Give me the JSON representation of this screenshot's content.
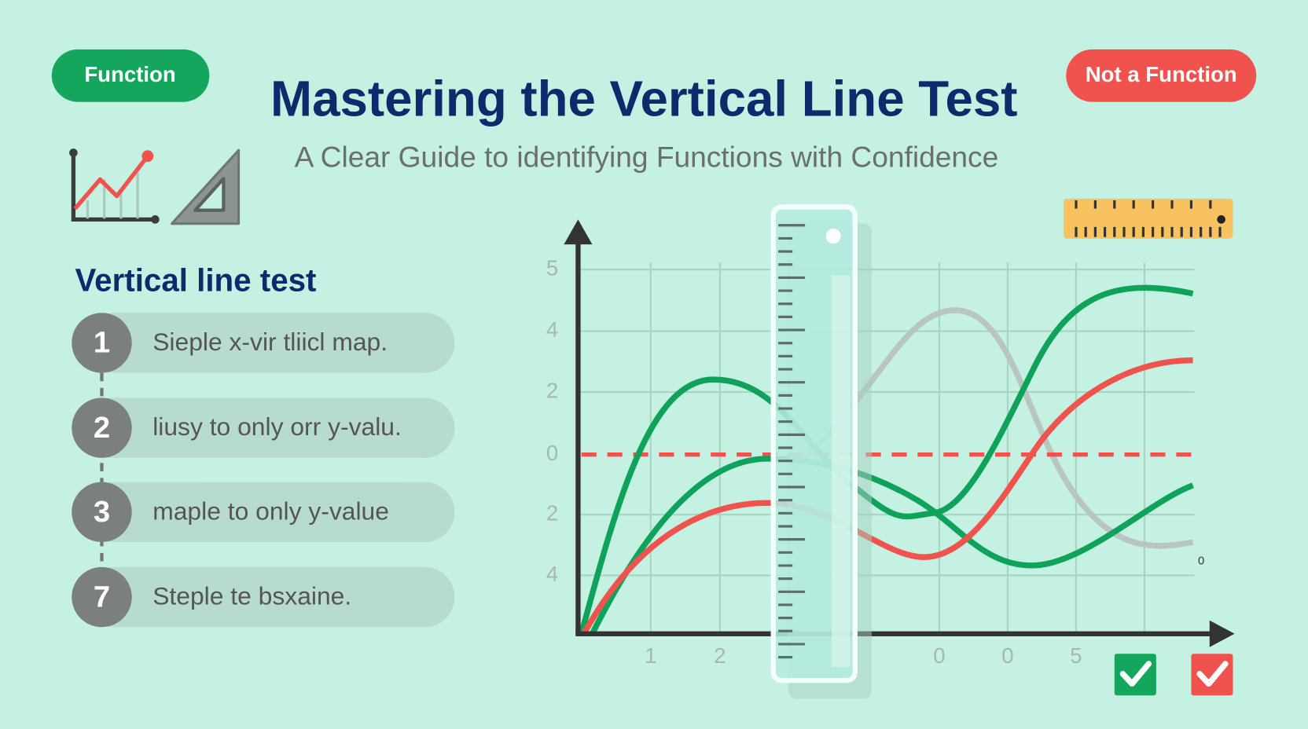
{
  "header": {
    "badge_left": "Function",
    "badge_right": "Not a Function",
    "title": "Mastering the Vertical Line Test",
    "subtitle": "A Clear Guide to identifying Functions with Confidence"
  },
  "steps_panel": {
    "heading": "Vertical line test",
    "steps": [
      {
        "number": "1",
        "text": "Sieple x-vir tliicl map."
      },
      {
        "number": "2",
        "text": "liusy to only orr y-valu."
      },
      {
        "number": "3",
        "text": "maple to only y-value"
      },
      {
        "number": "7",
        "text": "Steple te bsxaine."
      }
    ]
  },
  "illustration": {
    "y_labels": [
      "5",
      "4",
      "2",
      "0",
      "2",
      "4"
    ],
    "x_labels": [
      "1",
      "2",
      "0",
      "0",
      "5"
    ],
    "corner_label": "0"
  }
}
